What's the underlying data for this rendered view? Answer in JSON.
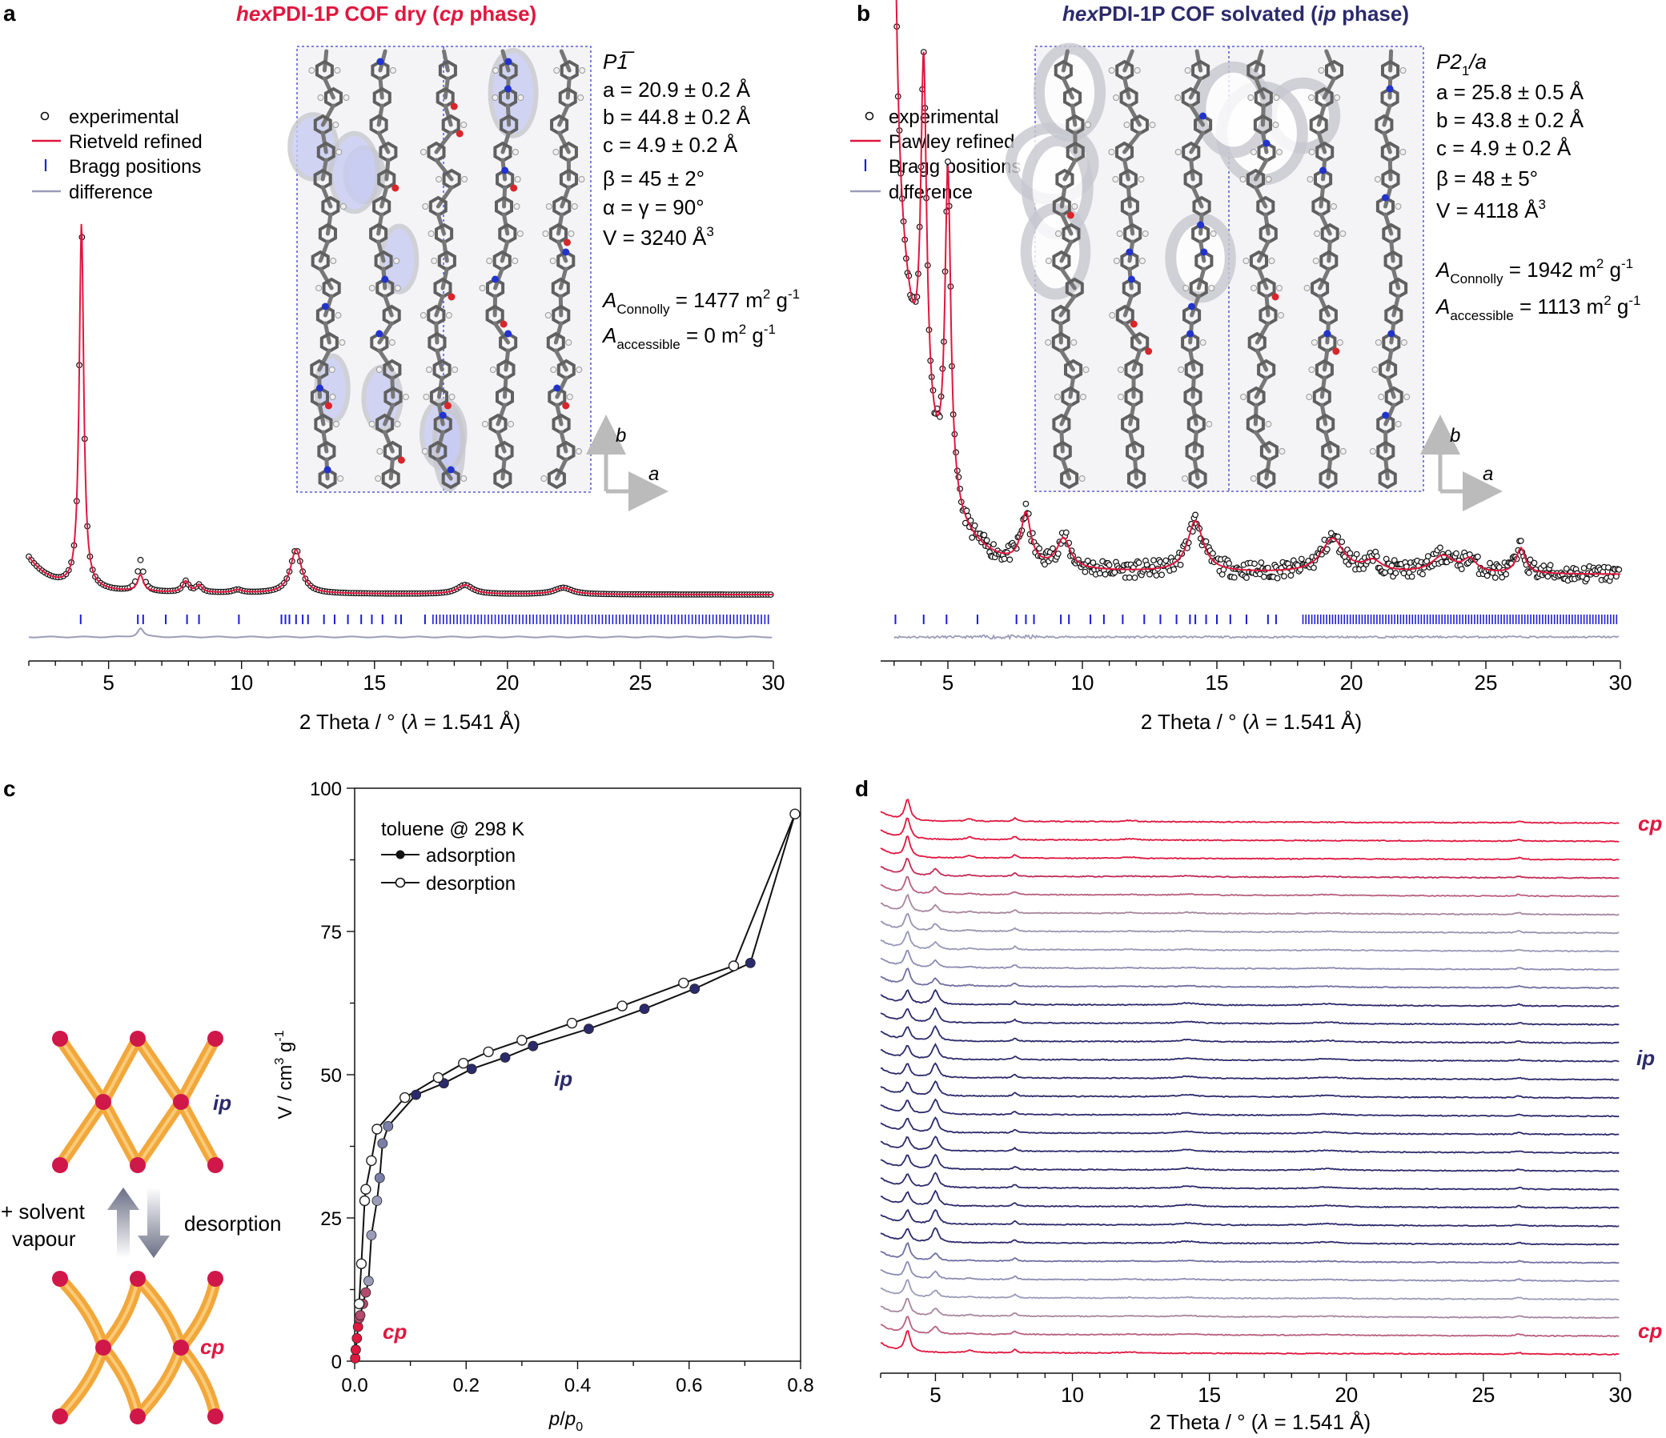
{
  "colors": {
    "red": "#e0173f",
    "navy": "#2b2a6b",
    "bragg": "#1d1dd6",
    "diff": "#9a9cb8",
    "black": "#111111",
    "cell": "#3b3fd0",
    "pore": "#c9ccf2",
    "stick": "#777777"
  },
  "panel_a": {
    "letter": "a",
    "title_italic": "hex",
    "title_main": "PDI-1P COF dry (",
    "title_italic2": "cp",
    "title_end": " phase)",
    "legend": {
      "experimental": "experimental",
      "refined": "Rietveld refined",
      "bragg": "Bragg positions",
      "difference": "difference"
    },
    "cell": {
      "space_group": "P1̅",
      "a": "a = 20.9 ± 0.2 Å",
      "b": "b = 44.8 ± 0.2 Å",
      "c": "c = 4.9 ± 0.2 Å",
      "beta": "β = 45 ± 2°",
      "alphagamma": "α = γ = 90°",
      "V": "V = 3240 Å",
      "V_sup": "3",
      "A_conn_pre": "A",
      "A_conn_sub": "Connolly",
      "A_conn_val": " = 1477 m",
      "A_conn_tail": " g",
      "A_acc_pre": "A",
      "A_acc_sub": "accessible",
      "A_acc_val": " = 0 m",
      "A_acc_tail": " g"
    },
    "axis_b": "b",
    "axis_a": "a",
    "xlabel_pre": "2 Theta / ° (",
    "xlabel_lambda": "λ",
    "xlabel_post": " = 1.541 Å)"
  },
  "panel_b": {
    "letter": "b",
    "title_italic": "hex",
    "title_main": "PDI-1P COF solvated (",
    "title_italic2": "ip",
    "title_end": " phase)",
    "legend": {
      "experimental": "experimental",
      "refined": "Pawley refined",
      "bragg": "Bragg positions",
      "difference": "difference"
    },
    "cell": {
      "space_group": "P2",
      "sg_sub": "1",
      "sg_tail": "/a",
      "a": "a = 25.8 ± 0.5 Å",
      "b": "b = 43.8 ± 0.2 Å",
      "c": "c = 4.9 ± 0.2 Å",
      "beta": "β = 48 ± 5°",
      "V": "V = 4118 Å",
      "V_sup": "3",
      "A_conn_pre": "A",
      "A_conn_sub": "Connolly",
      "A_conn_val": " = 1942 m",
      "A_conn_tail": " g",
      "A_acc_pre": "A",
      "A_acc_sub": "accessible",
      "A_acc_val": " = 1113 m",
      "A_acc_tail": " g"
    },
    "axis_b": "b",
    "axis_a": "a",
    "xlabel_pre": "2 Theta / ° (",
    "xlabel_lambda": "λ",
    "xlabel_post": " = 1.541 Å)"
  },
  "panel_c": {
    "letter": "c",
    "label_ip": "ip",
    "label_cp": "cp",
    "arrow_up_label_1": "+ solvent",
    "arrow_up_label_2": "vapour",
    "arrow_down_label": "desorption",
    "legend_title": "toluene @ 298 K",
    "legend_ads": "adsorption",
    "legend_des": "desorption",
    "plot_ip": "ip",
    "plot_cp": "cp",
    "ylabel_pre": "V / cm",
    "ylabel_sup1": "3",
    "ylabel_mid": " g",
    "ylabel_sup2": "-1",
    "xlabel_p": "p",
    "xlabel_slash": "/",
    "xlabel_p0": "p",
    "xlabel_sub": "0"
  },
  "panel_d": {
    "letter": "d",
    "label_cp_top": "cp",
    "label_ip": "ip",
    "label_cp_bottom": "cp",
    "xlabel_pre": "2 Theta / ° (",
    "xlabel_lambda": "λ",
    "xlabel_post": " = 1.541 Å)"
  },
  "chart_data": [
    {
      "id": "a",
      "type": "line",
      "title": "hexPDI-1P COF dry (cp phase)",
      "xlabel": "2 Theta / ° (λ = 1.541 Å)",
      "ylabel": "",
      "xlim": [
        2,
        30
      ],
      "xticks": [
        5,
        10,
        15,
        20,
        25,
        30
      ],
      "series": [
        {
          "name": "experimental",
          "style": "open circles",
          "peaks": [
            {
              "x": 3.98,
              "h": 1.0,
              "w": 0.1
            },
            {
              "x": 6.2,
              "h": 0.085,
              "w": 0.13
            },
            {
              "x": 7.9,
              "h": 0.03,
              "w": 0.13
            },
            {
              "x": 8.4,
              "h": 0.02,
              "w": 0.13
            },
            {
              "x": 9.85,
              "h": 0.008,
              "w": 0.2
            },
            {
              "x": 12.05,
              "h": 0.12,
              "w": 0.25
            },
            {
              "x": 18.4,
              "h": 0.025,
              "w": 0.35
            },
            {
              "x": 22.1,
              "h": 0.018,
              "w": 0.4
            }
          ]
        },
        {
          "name": "Rietveld refined",
          "style": "red line"
        },
        {
          "name": "Bragg positions",
          "style": "blue ticks",
          "x": [
            3.95,
            6.1,
            6.3,
            7.15,
            7.95,
            8.4,
            9.9,
            11.5,
            11.65,
            11.8,
            12.05,
            12.3,
            12.5,
            13.1,
            13.5,
            14.0,
            14.5,
            14.9,
            15.3,
            15.8,
            16.0,
            16.9
          ]
        },
        {
          "name": "difference",
          "style": "grey line"
        }
      ]
    },
    {
      "id": "b",
      "type": "line",
      "title": "hexPDI-1P COF solvated (ip phase)",
      "xlabel": "2 Theta / ° (λ = 1.541 Å)",
      "ylabel": "",
      "xlim": [
        2.5,
        30
      ],
      "xticks": [
        5,
        10,
        15,
        20,
        25,
        30
      ],
      "series": [
        {
          "name": "experimental",
          "style": "open circles",
          "peaks": [
            {
              "x": 3.0,
              "h": 0.58,
              "w": 0.13
            },
            {
              "x": 4.1,
              "h": 0.83,
              "w": 0.13
            },
            {
              "x": 5.0,
              "h": 0.77,
              "w": 0.13
            },
            {
              "x": 7.9,
              "h": 0.12,
              "w": 0.22
            },
            {
              "x": 9.3,
              "h": 0.07,
              "w": 0.3
            },
            {
              "x": 14.2,
              "h": 0.12,
              "w": 0.35
            },
            {
              "x": 19.3,
              "h": 0.08,
              "w": 0.5
            },
            {
              "x": 20.8,
              "h": 0.025,
              "w": 0.4
            },
            {
              "x": 23.4,
              "h": 0.04,
              "w": 0.5
            },
            {
              "x": 24.4,
              "h": 0.03,
              "w": 0.3
            },
            {
              "x": 26.3,
              "h": 0.06,
              "w": 0.2
            }
          ]
        },
        {
          "name": "Pawley refined",
          "style": "red line"
        },
        {
          "name": "Bragg positions",
          "style": "blue ticks",
          "x": [
            3.05,
            4.1,
            4.95,
            6.1,
            7.55,
            7.9,
            8.2,
            9.2,
            9.5,
            10.3,
            10.8,
            11.5,
            12.3,
            12.9,
            13.5,
            14.0,
            14.2,
            14.6,
            15.0,
            15.5,
            16.1,
            16.9,
            17.2
          ]
        },
        {
          "name": "difference",
          "style": "grey line"
        }
      ]
    },
    {
      "id": "c",
      "type": "line",
      "title": "toluene @ 298 K",
      "xlabel": "p/p0",
      "ylabel": "V / cm3 g-1",
      "xlim": [
        0,
        0.8
      ],
      "ylim": [
        0,
        100
      ],
      "xticks": [
        0,
        0.2,
        0.4,
        0.6,
        0.8
      ],
      "yticks": [
        0,
        25,
        50,
        75,
        100
      ],
      "series": [
        {
          "name": "adsorption",
          "style": "filled circles",
          "x": [
            0.001,
            0.002,
            0.004,
            0.006,
            0.008,
            0.01,
            0.015,
            0.02,
            0.025,
            0.03,
            0.04,
            0.045,
            0.05,
            0.06,
            0.11,
            0.16,
            0.21,
            0.27,
            0.32,
            0.42,
            0.52,
            0.61,
            0.71,
            0.79
          ],
          "y": [
            0.5,
            2,
            4,
            6,
            7.5,
            8,
            10,
            12,
            14,
            22,
            28,
            32,
            38,
            41,
            46.5,
            48.5,
            51,
            53,
            55,
            58,
            61.5,
            65,
            69.5,
            95.5
          ]
        },
        {
          "name": "desorption",
          "style": "open circles",
          "x": [
            0.79,
            0.68,
            0.59,
            0.48,
            0.39,
            0.3,
            0.24,
            0.195,
            0.15,
            0.09,
            0.04,
            0.03,
            0.02,
            0.018,
            0.012,
            0.008
          ],
          "y": [
            95.5,
            69,
            66,
            62,
            59,
            56,
            54,
            52,
            49.5,
            46,
            40.5,
            35,
            30,
            28,
            17,
            10
          ]
        }
      ],
      "annotations": [
        "ip",
        "cp"
      ]
    },
    {
      "id": "d",
      "type": "line",
      "xlabel": "2 Theta / ° (λ = 1.541 Å)",
      "xlim": [
        3,
        30
      ],
      "xticks": [
        5,
        10,
        15,
        20,
        25,
        30
      ],
      "n_traces": 30,
      "trace_colors": [
        "#e0173f",
        "#e0173f",
        "#e0173f",
        "#c22b56",
        "#b8607f",
        "#a7869e",
        "#9a93b0",
        "#9798b6",
        "#8c8cb3",
        "#6f6fa0",
        "#2b2a6b",
        "#2b2a6b",
        "#2b2a6b",
        "#2b2a6b",
        "#2b2a6b",
        "#2b2a6b",
        "#2b2a6b",
        "#2b2a6b",
        "#2b2a6b",
        "#2b2a6b",
        "#2b2a6b",
        "#2b2a6b",
        "#2b2a6b",
        "#2b2a6b",
        "#6f6fa0",
        "#8c8cb3",
        "#9a9cb8",
        "#a7869e",
        "#b8607f",
        "#e0173f"
      ],
      "trace_phase": [
        "cp",
        "cp",
        "cp",
        "mix",
        "mix",
        "mix",
        "mix",
        "mix",
        "mix",
        "mix",
        "ip",
        "ip",
        "ip",
        "ip",
        "ip",
        "ip",
        "ip",
        "ip",
        "ip",
        "ip",
        "ip",
        "ip",
        "ip",
        "ip",
        "mix",
        "mix",
        "mix",
        "mix",
        "mix",
        "cp"
      ],
      "annotations": [
        "cp",
        "ip",
        "cp"
      ]
    }
  ]
}
